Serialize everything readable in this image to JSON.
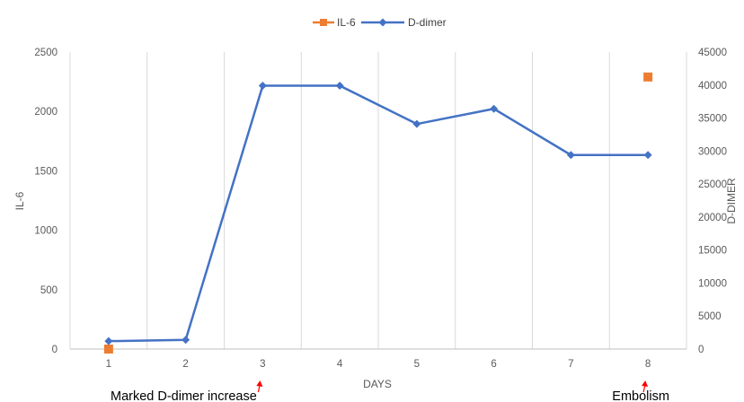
{
  "chart_data": {
    "type": "line",
    "xlabel": "DAYS",
    "ylabel_left": "IL-6",
    "ylabel_right": "D-DIMER",
    "categories": [
      "1",
      "2",
      "3",
      "4",
      "5",
      "6",
      "7",
      "8"
    ],
    "y_left": {
      "min": 0,
      "max": 2500,
      "ticks": [
        "0",
        "500",
        "1000",
        "1500",
        "2000",
        "2500"
      ]
    },
    "y_right": {
      "min": 0,
      "max": 45000,
      "ticks": [
        "0",
        "5000",
        "10000",
        "15000",
        "20000",
        "25000",
        "30000",
        "35000",
        "40000",
        "45000"
      ]
    },
    "grid": "vertical",
    "legend_position": "top",
    "series": [
      {
        "name": "IL-6",
        "axis": "left",
        "marker": "square",
        "line": false,
        "color": "#ED7D31",
        "values": [
          0,
          null,
          null,
          null,
          null,
          null,
          null,
          2290
        ]
      },
      {
        "name": "D-dimer",
        "axis": "right",
        "marker": "diamond",
        "line": true,
        "color": "#4472C4",
        "values": [
          1200,
          1400,
          39900,
          39900,
          34100,
          36400,
          29400,
          29400
        ]
      }
    ],
    "annotations": [
      {
        "text": "Marked D-dimer increase",
        "day": "3"
      },
      {
        "text": "Embolism",
        "day": "8"
      }
    ],
    "annotation_color": "#FF0000"
  }
}
